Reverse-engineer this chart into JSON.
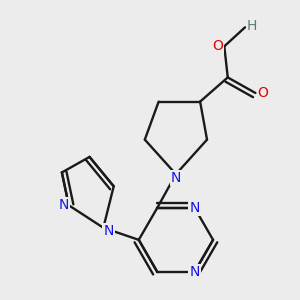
{
  "bg_color": "#ececec",
  "bond_color": "#1a1a1a",
  "N_color": "#1414e6",
  "O_color": "#e60000",
  "H_color": "#5a7a7a",
  "line_width": 1.7,
  "font_size": 10,
  "fig_size": [
    3.0,
    3.0
  ],
  "dpi": 100,
  "xlim": [
    -0.55,
    1.05
  ],
  "ylim": [
    -0.92,
    0.8
  ]
}
